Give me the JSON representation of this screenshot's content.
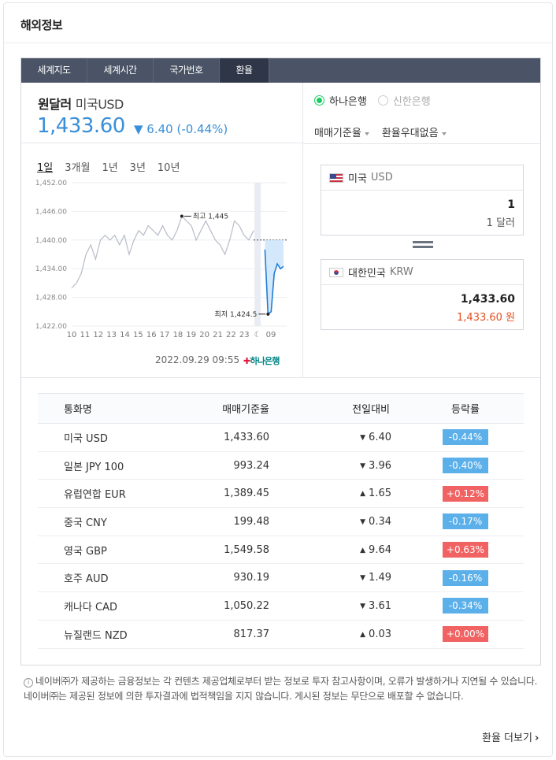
{
  "section_title": "해외정보",
  "tabs": [
    {
      "label": "세계지도",
      "active": false
    },
    {
      "label": "세계시간",
      "active": false
    },
    {
      "label": "국가번호",
      "active": false
    },
    {
      "label": "환율",
      "active": true
    }
  ],
  "summary": {
    "name": "원달러",
    "sub": "미국USD",
    "price": "1,433.60",
    "change": "▼ 6.40 (-0.44%)"
  },
  "banks": {
    "selected": "하나은행",
    "other": "신한은행"
  },
  "options": {
    "rate_type": "매매기준율",
    "discount": "환율우대없음"
  },
  "periods": [
    "1일",
    "3개월",
    "1년",
    "3년",
    "10년"
  ],
  "chart_data": {
    "type": "line",
    "y_ticks": [
      "1,452.00",
      "1,446.00",
      "1,440.00",
      "1,434.00",
      "1,428.00",
      "1,422.00"
    ],
    "ylim": [
      1422,
      1452
    ],
    "x_ticks": [
      "10",
      "11",
      "12",
      "13",
      "14",
      "15",
      "16",
      "17",
      "18",
      "19",
      "20",
      "21",
      "22",
      "23",
      "☾",
      "09"
    ],
    "annotations": {
      "high": "최고 1,445",
      "low": "최저 1,424.5"
    },
    "high": 1445,
    "low": 1424.5,
    "reference_line": 1440,
    "series": [
      {
        "values": [
          1430,
          1431,
          1433,
          1437,
          1439,
          1436,
          1440,
          1441,
          1440,
          1441,
          1439,
          1441,
          1437,
          1440,
          1442,
          1441,
          1443,
          1442,
          1441,
          1443,
          1441,
          1440,
          1442,
          1445,
          1444,
          1443,
          1440,
          1442,
          1444,
          1442,
          1440,
          1439,
          1437,
          1440,
          1444,
          1443,
          1441,
          1440,
          1442
        ]
      },
      {
        "values": [
          1438,
          1424.5,
          1425,
          1433,
          1435,
          1434,
          1434.5
        ]
      }
    ],
    "stamp": "2022.09.29 09:55",
    "source_logo": "하나은행"
  },
  "converter": {
    "from": {
      "country": "미국",
      "code": "USD",
      "value": "1",
      "words": "1 달러"
    },
    "to": {
      "country": "대한민국",
      "code": "KRW",
      "value": "1,433.60",
      "words": "1,433.60 원"
    }
  },
  "rates_table": {
    "headers": [
      "통화명",
      "매매기준율",
      "전일대비",
      "등락률"
    ],
    "rows": [
      {
        "name": "미국 USD",
        "rate": "1,433.60",
        "diff": "6.40",
        "pct": "-0.44%",
        "dir": "down"
      },
      {
        "name": "일본 JPY 100",
        "rate": "993.24",
        "diff": "3.96",
        "pct": "-0.40%",
        "dir": "down"
      },
      {
        "name": "유럽연합 EUR",
        "rate": "1,389.45",
        "diff": "1.65",
        "pct": "+0.12%",
        "dir": "up"
      },
      {
        "name": "중국 CNY",
        "rate": "199.48",
        "diff": "0.34",
        "pct": "-0.17%",
        "dir": "down"
      },
      {
        "name": "영국 GBP",
        "rate": "1,549.58",
        "diff": "9.64",
        "pct": "+0.63%",
        "dir": "up"
      },
      {
        "name": "호주 AUD",
        "rate": "930.19",
        "diff": "1.49",
        "pct": "-0.16%",
        "dir": "down"
      },
      {
        "name": "캐나다 CAD",
        "rate": "1,050.22",
        "diff": "3.61",
        "pct": "-0.34%",
        "dir": "down"
      },
      {
        "name": "뉴질랜드 NZD",
        "rate": "817.37",
        "diff": "0.03",
        "pct": "+0.00%",
        "dir": "up"
      }
    ]
  },
  "notice": "네이버㈜가 제공하는 금융정보는 각 컨텐츠 제공업체로부터 받는 정보로 투자 참고사항이며, 오류가 발생하거나 지연될 수 있습니다. 네이버㈜는 제공된 정보에 의한 투자결과에 법적책임을 지지 않습니다. 게시된 정보는 무단으로 배포할 수 없습니다.",
  "more_link": "환율 더보기",
  "colors": {
    "up": "#e5501f",
    "down": "#3a8fd9",
    "tab_bg": "#4a5466"
  }
}
